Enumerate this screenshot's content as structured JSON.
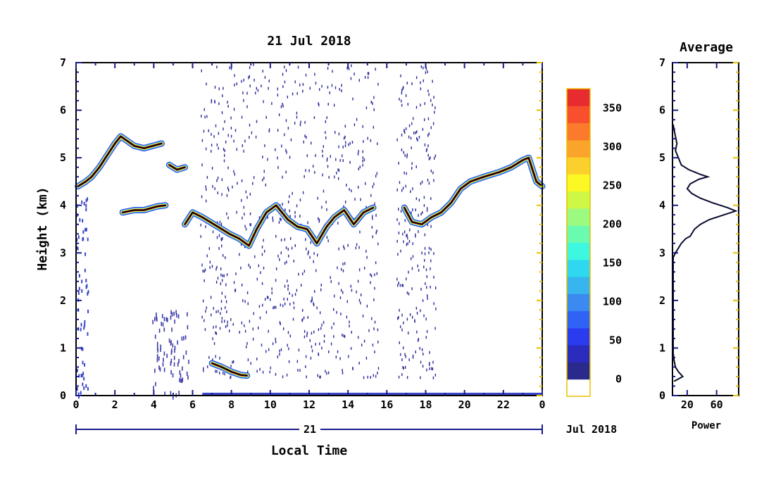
{
  "chart_data": [
    {
      "type": "heatmap",
      "title": "21 Jul 2018",
      "xlabel": "Local Time",
      "ylabel": "Height (km)",
      "xlim": [
        0,
        24
      ],
      "ylim": [
        0,
        7
      ],
      "x_ticks": [
        "0",
        "2",
        "4",
        "6",
        "8",
        "10",
        "12",
        "14",
        "16",
        "18",
        "20",
        "22",
        "0"
      ],
      "y_ticks": [
        "0",
        "1",
        "2",
        "3",
        "4",
        "5",
        "6",
        "7"
      ],
      "day_axis": {
        "label": "21",
        "suffix": "Jul 2018"
      },
      "colorbar": {
        "min": 0,
        "max": 375,
        "tick_labels": [
          "0",
          "50",
          "100",
          "150",
          "200",
          "250",
          "300",
          "350"
        ],
        "colors": [
          "#ffffff",
          "#2a2a8c",
          "#2b2bbe",
          "#2a3bf0",
          "#2f62f5",
          "#3a8af2",
          "#38b4ee",
          "#2fd8f0",
          "#3ef7e0",
          "#6bfbb0",
          "#9dfa80",
          "#cdf845",
          "#fbf826",
          "#fbd02c",
          "#fba42b",
          "#fb7a2c",
          "#f8502f",
          "#e82b2e"
        ]
      },
      "series": [
        {
          "name": "",
          "points": [
            [
              0.1,
              4.4
            ],
            [
              0.5,
              4.5
            ],
            [
              0.8,
              4.6
            ],
            [
              1.2,
              4.8
            ],
            [
              1.6,
              5.05
            ],
            [
              2.0,
              5.3
            ],
            [
              2.3,
              5.45
            ],
            [
              3.0,
              5.25
            ],
            [
              3.5,
              5.2
            ],
            [
              4.4,
              5.3
            ]
          ]
        },
        {
          "name": "",
          "points": [
            [
              2.4,
              3.85
            ],
            [
              3.0,
              3.9
            ],
            [
              3.5,
              3.9
            ],
            [
              4.2,
              3.98
            ],
            [
              4.6,
              4.0
            ]
          ]
        },
        {
          "name": "",
          "points": [
            [
              4.8,
              4.85
            ],
            [
              5.2,
              4.75
            ],
            [
              5.6,
              4.8
            ]
          ]
        },
        {
          "name": "",
          "points": [
            [
              5.6,
              3.6
            ],
            [
              6.0,
              3.85
            ],
            [
              6.5,
              3.75
            ],
            [
              7.3,
              3.55
            ],
            [
              7.9,
              3.4
            ],
            [
              8.4,
              3.3
            ],
            [
              8.9,
              3.15
            ],
            [
              9.3,
              3.5
            ],
            [
              9.8,
              3.85
            ],
            [
              10.3,
              4.0
            ],
            [
              10.9,
              3.7
            ],
            [
              11.4,
              3.55
            ],
            [
              11.9,
              3.5
            ],
            [
              12.4,
              3.2
            ],
            [
              12.9,
              3.55
            ],
            [
              13.3,
              3.75
            ],
            [
              13.8,
              3.9
            ],
            [
              14.3,
              3.6
            ],
            [
              14.8,
              3.85
            ],
            [
              15.3,
              3.95
            ]
          ]
        },
        {
          "name": "",
          "points": [
            [
              16.9,
              3.95
            ],
            [
              17.3,
              3.65
            ],
            [
              17.8,
              3.6
            ],
            [
              18.3,
              3.75
            ],
            [
              18.8,
              3.85
            ],
            [
              19.3,
              4.05
            ],
            [
              19.8,
              4.35
            ],
            [
              20.3,
              4.5
            ],
            [
              21.0,
              4.6
            ],
            [
              21.8,
              4.7
            ],
            [
              22.4,
              4.8
            ],
            [
              23.0,
              4.95
            ],
            [
              23.3,
              5.0
            ],
            [
              23.7,
              4.5
            ],
            [
              24.0,
              4.4
            ]
          ]
        },
        {
          "name": "",
          "points": [
            [
              7.0,
              0.68
            ],
            [
              7.5,
              0.6
            ],
            [
              8.0,
              0.5
            ],
            [
              8.5,
              0.43
            ],
            [
              8.8,
              0.42
            ]
          ]
        }
      ]
    },
    {
      "type": "line",
      "title": "Average",
      "xlabel": "Power",
      "ylabel": "",
      "xlim": [
        0,
        90
      ],
      "ylim": [
        0,
        7
      ],
      "x_ticks": [
        "20",
        "60"
      ],
      "y_ticks": [
        "0",
        "1",
        "2",
        "3",
        "4",
        "5",
        "6",
        "7"
      ],
      "series": [
        {
          "name": "",
          "points": [
            [
              2,
              0.3
            ],
            [
              8,
              0.35
            ],
            [
              14,
              0.4
            ],
            [
              8,
              0.5
            ],
            [
              4,
              0.6
            ],
            [
              2,
              0.75
            ],
            [
              1,
              0.9
            ],
            [
              1,
              2.9
            ],
            [
              4,
              3.0
            ],
            [
              8,
              3.1
            ],
            [
              12,
              3.2
            ],
            [
              18,
              3.3
            ],
            [
              24,
              3.35
            ],
            [
              30,
              3.5
            ],
            [
              38,
              3.6
            ],
            [
              50,
              3.7
            ],
            [
              70,
              3.8
            ],
            [
              86,
              3.88
            ],
            [
              75,
              3.95
            ],
            [
              55,
              4.05
            ],
            [
              38,
              4.15
            ],
            [
              26,
              4.25
            ],
            [
              20,
              4.35
            ],
            [
              24,
              4.45
            ],
            [
              36,
              4.55
            ],
            [
              48,
              4.6
            ],
            [
              38,
              4.65
            ],
            [
              22,
              4.75
            ],
            [
              12,
              4.85
            ],
            [
              8,
              5.0
            ],
            [
              4,
              5.15
            ],
            [
              6,
              5.3
            ],
            [
              4,
              5.45
            ],
            [
              2,
              5.6
            ],
            [
              1,
              5.7
            ]
          ]
        }
      ]
    }
  ]
}
